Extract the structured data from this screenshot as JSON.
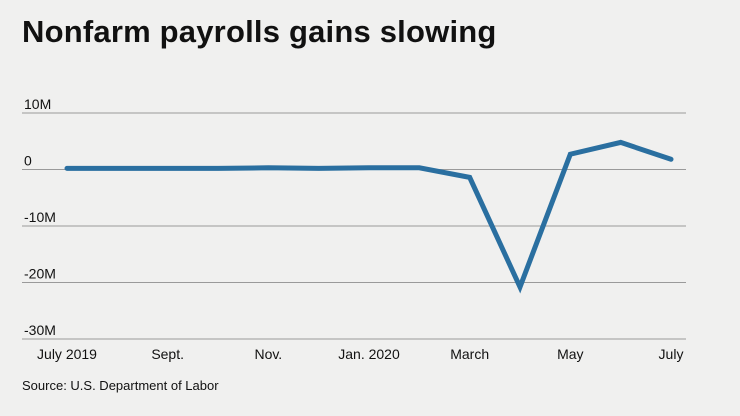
{
  "title": "Nonfarm payrolls gains slowing",
  "source": "Source: U.S. Department of Labor",
  "colors": {
    "line": "#2a6fa0",
    "grid": "#9a9a9a",
    "background": "#f0f0ef"
  },
  "chart_data": {
    "type": "line",
    "title": "Nonfarm payrolls gains slowing",
    "xlabel": "",
    "ylabel": "",
    "ylim": [
      -30,
      10
    ],
    "y_unit": "millions",
    "grid": true,
    "legend": "none",
    "y_ticks": [
      {
        "value": 10,
        "label": "10M"
      },
      {
        "value": 0,
        "label": "0"
      },
      {
        "value": -10,
        "label": "-10M"
      },
      {
        "value": -20,
        "label": "-20M"
      },
      {
        "value": -30,
        "label": "-30M"
      }
    ],
    "x_tick_labels": [
      "July 2019",
      "Sept.",
      "Nov.",
      "Jan. 2020",
      "March",
      "May",
      "July"
    ],
    "x_tick_months": [
      "2019-07",
      "2019-09",
      "2019-11",
      "2020-01",
      "2020-03",
      "2020-05",
      "2020-07"
    ],
    "series": [
      {
        "x": [
          "2019-07",
          "2019-08",
          "2019-09",
          "2019-10",
          "2019-11",
          "2019-12",
          "2020-01",
          "2020-02",
          "2020-03",
          "2020-04",
          "2020-05",
          "2020-06",
          "2020-07"
        ],
        "values": [
          0.2,
          0.2,
          0.2,
          0.2,
          0.3,
          0.2,
          0.3,
          0.3,
          -1.4,
          -20.8,
          2.7,
          4.8,
          1.8
        ]
      }
    ]
  }
}
